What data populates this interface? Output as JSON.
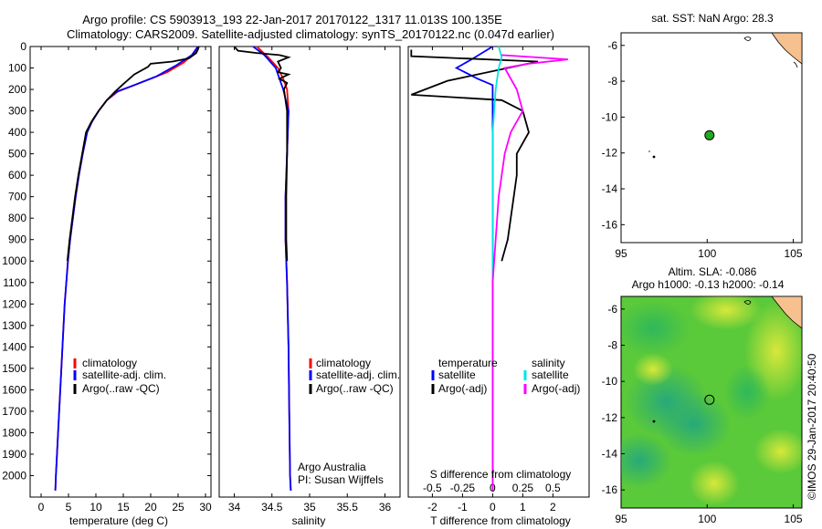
{
  "header": {
    "title_line1": "Argo profile: CS 5903913_193 22-Jan-2017 20170122_1317 11.013S 100.135E",
    "title_line2": "Climatology: CARS2009. Satellite-adjusted climatology: synTS_20170122.nc (0.047d earlier)"
  },
  "colors": {
    "climatology": "#ff0000",
    "satellite": "#0000ff",
    "argo": "#000000",
    "satellite_salinity": "#00e5e5",
    "argo_salinity": "#ff00ff",
    "land": "#f6c08f",
    "argo_marker": "#22aa22"
  },
  "chart_data": [
    {
      "type": "line",
      "name": "temperature-profile",
      "xlabel": "temperature (deg C)",
      "xlim": [
        -2,
        31
      ],
      "ylim": [
        2100,
        0
      ],
      "xticks": [
        0,
        5,
        10,
        15,
        20,
        25,
        30
      ],
      "yticks": [
        0,
        100,
        200,
        300,
        400,
        500,
        600,
        700,
        800,
        900,
        1000,
        1100,
        1200,
        1300,
        1400,
        1500,
        1600,
        1700,
        1800,
        1900,
        2000
      ],
      "legend": [
        "climatology",
        "satellite-adj. clim.",
        "Argo(..raw -QC)"
      ],
      "series": [
        {
          "name": "climatology",
          "color": "#ff0000",
          "points": [
            [
              28.6,
              0
            ],
            [
              28.2,
              25
            ],
            [
              26,
              75
            ],
            [
              23,
              120
            ],
            [
              18,
              170
            ],
            [
              14,
              210
            ],
            [
              12,
              250
            ],
            [
              10.5,
              300
            ],
            [
              9.3,
              350
            ],
            [
              8.4,
              400
            ],
            [
              7.6,
              500
            ],
            [
              6.9,
              600
            ],
            [
              6.3,
              700
            ],
            [
              5.8,
              800
            ],
            [
              5.3,
              900
            ],
            [
              4.9,
              1000
            ],
            [
              4.6,
              1100
            ],
            [
              4.3,
              1200
            ],
            [
              4.1,
              1300
            ],
            [
              3.9,
              1400
            ],
            [
              3.7,
              1500
            ],
            [
              3.5,
              1600
            ],
            [
              3.3,
              1700
            ],
            [
              3.1,
              1800
            ],
            [
              2.9,
              1900
            ],
            [
              2.7,
              2000
            ],
            [
              2.6,
              2070
            ]
          ]
        },
        {
          "name": "satellite-adj. clim.",
          "color": "#0000ff",
          "points": [
            [
              28.6,
              0
            ],
            [
              27.5,
              40
            ],
            [
              24.5,
              90
            ],
            [
              21,
              140
            ],
            [
              17,
              180
            ],
            [
              13.8,
              210
            ],
            [
              12,
              250
            ],
            [
              10.5,
              300
            ],
            [
              9.3,
              350
            ],
            [
              8.4,
              400
            ],
            [
              7.6,
              500
            ],
            [
              6.9,
              600
            ],
            [
              6.3,
              700
            ],
            [
              5.8,
              800
            ],
            [
              5.3,
              900
            ],
            [
              4.9,
              1000
            ],
            [
              4.6,
              1100
            ],
            [
              4.3,
              1200
            ],
            [
              4.1,
              1300
            ],
            [
              3.9,
              1400
            ],
            [
              3.7,
              1500
            ],
            [
              3.5,
              1600
            ],
            [
              3.3,
              1700
            ],
            [
              3.1,
              1800
            ],
            [
              2.9,
              1900
            ],
            [
              2.7,
              2000
            ],
            [
              2.6,
              2070
            ]
          ]
        },
        {
          "name": "Argo(..raw -QC)",
          "color": "#000000",
          "points": [
            [
              28.8,
              0
            ],
            [
              28.6,
              15
            ],
            [
              28.3,
              30
            ],
            [
              27,
              55
            ],
            [
              24,
              70
            ],
            [
              20,
              80
            ],
            [
              19.5,
              95
            ],
            [
              17,
              130
            ],
            [
              15,
              175
            ],
            [
              13.5,
              210
            ],
            [
              12,
              250
            ],
            [
              10.5,
              300
            ],
            [
              9.2,
              350
            ],
            [
              8.2,
              400
            ],
            [
              7.5,
              500
            ],
            [
              6.8,
              600
            ],
            [
              6.2,
              700
            ],
            [
              5.7,
              800
            ],
            [
              5.2,
              900
            ],
            [
              4.8,
              1000
            ]
          ]
        }
      ]
    },
    {
      "type": "line",
      "name": "salinity-profile",
      "xlabel": "salinity",
      "xlim": [
        33.8,
        36.2
      ],
      "ylim": [
        2100,
        0
      ],
      "xticks": [
        34,
        34.5,
        35,
        35.5,
        36
      ],
      "legend": [
        "climatology",
        "satellite-adj. clim.",
        "Argo(..raw -QC)"
      ],
      "annotation": [
        "Argo Australia",
        "PI: Susan Wijffels"
      ],
      "series": [
        {
          "name": "climatology",
          "color": "#ff0000",
          "points": [
            [
              34.3,
              0
            ],
            [
              34.45,
              50
            ],
            [
              34.58,
              100
            ],
            [
              34.65,
              150
            ],
            [
              34.7,
              200
            ],
            [
              34.72,
              300
            ],
            [
              34.7,
              500
            ],
            [
              34.68,
              700
            ],
            [
              34.68,
              900
            ],
            [
              34.7,
              1100
            ],
            [
              34.72,
              1400
            ],
            [
              34.73,
              1700
            ],
            [
              34.74,
              2000
            ],
            [
              34.75,
              2070
            ]
          ]
        },
        {
          "name": "satellite-adj. clim.",
          "color": "#0000ff",
          "points": [
            [
              34.25,
              0
            ],
            [
              34.4,
              40
            ],
            [
              34.55,
              100
            ],
            [
              34.6,
              150
            ],
            [
              34.65,
              200
            ],
            [
              34.72,
              300
            ],
            [
              34.7,
              500
            ],
            [
              34.68,
              700
            ],
            [
              34.68,
              900
            ],
            [
              34.7,
              1100
            ],
            [
              34.72,
              1400
            ],
            [
              34.73,
              1700
            ],
            [
              34.74,
              2000
            ],
            [
              34.75,
              2070
            ]
          ]
        },
        {
          "name": "Argo(..raw -QC)",
          "color": "#000000",
          "points": [
            [
              34.0,
              0
            ],
            [
              34.05,
              20
            ],
            [
              34.3,
              30
            ],
            [
              34.6,
              40
            ],
            [
              34.72,
              50
            ],
            [
              34.58,
              70
            ],
            [
              34.62,
              100
            ],
            [
              34.58,
              120
            ],
            [
              34.72,
              130
            ],
            [
              34.6,
              150
            ],
            [
              34.7,
              170
            ],
            [
              34.66,
              200
            ],
            [
              34.7,
              300
            ],
            [
              34.7,
              500
            ],
            [
              34.69,
              700
            ],
            [
              34.69,
              900
            ],
            [
              34.7,
              1000
            ]
          ]
        }
      ]
    },
    {
      "type": "line",
      "name": "difference-profile",
      "xlabel": "T difference from climatology",
      "x2label": "S difference from climatology",
      "xlim": [
        -2.8,
        3.2
      ],
      "ylim": [
        2100,
        0
      ],
      "xticks": [
        -2,
        -1,
        0,
        1,
        2
      ],
      "x2ticks": [
        "-0.5",
        "-0.25",
        "0",
        "0.25",
        "0.5"
      ],
      "x2tick_positions": [
        -2,
        -1,
        0,
        1,
        2
      ],
      "legend_left": [
        "temperature",
        "satellite",
        "Argo(-adj)"
      ],
      "legend_right": [
        "salinity",
        "satellite",
        "Argo(-adj)"
      ],
      "series": [
        {
          "name": "temperature satellite",
          "color": "#0000ff",
          "points": [
            [
              0,
              0
            ],
            [
              -0.7,
              60
            ],
            [
              -1.2,
              100
            ],
            [
              -0.5,
              150
            ],
            [
              0,
              180
            ],
            [
              0,
              300
            ],
            [
              0,
              600
            ],
            [
              0,
              900
            ],
            [
              0,
              1100
            ],
            [
              0,
              1400
            ],
            [
              0,
              1700
            ],
            [
              0,
              2070
            ]
          ]
        },
        {
          "name": "temperature Argo(-adj)",
          "color": "#000000",
          "points": [
            [
              -2.7,
              15
            ],
            [
              -2.7,
              45
            ],
            [
              1.5,
              70
            ],
            [
              -1.5,
              160
            ],
            [
              -2.7,
              225
            ],
            [
              0.3,
              250
            ],
            [
              1.0,
              300
            ],
            [
              1.2,
              400
            ],
            [
              0.8,
              500
            ],
            [
              0.8,
              600
            ],
            [
              0.7,
              700
            ],
            [
              0.6,
              800
            ],
            [
              0.5,
              900
            ],
            [
              0.3,
              1000
            ]
          ]
        },
        {
          "name": "salinity satellite",
          "color": "#00e5e5",
          "points": [
            [
              0.2,
              0
            ],
            [
              0.3,
              50
            ],
            [
              0.2,
              100
            ],
            [
              0.1,
              200
            ],
            [
              0,
              400
            ],
            [
              0,
              800
            ],
            [
              0,
              1200
            ],
            [
              0,
              1600
            ],
            [
              0,
              2070
            ]
          ]
        },
        {
          "name": "salinity Argo(-adj)",
          "color": "#ff00ff",
          "points": [
            [
              0.3,
              40
            ],
            [
              2.5,
              60
            ],
            [
              1.2,
              80
            ],
            [
              0.4,
              100
            ],
            [
              0.8,
              200
            ],
            [
              1.0,
              300
            ],
            [
              0.6,
              400
            ],
            [
              0.4,
              500
            ],
            [
              0.2,
              700
            ],
            [
              0.1,
              900
            ],
            [
              0,
              1100
            ],
            [
              0,
              1500
            ],
            [
              0,
              1800
            ],
            [
              0,
              2070
            ]
          ]
        }
      ]
    },
    {
      "type": "scatter",
      "name": "sst-map",
      "title": "sat. SST: NaN Argo: 28.3",
      "xlim": [
        95,
        105.5
      ],
      "ylim": [
        -17,
        -5.3
      ],
      "xticks": [
        95,
        100,
        105
      ],
      "yticks": [
        -6,
        -8,
        -10,
        -12,
        -14,
        -16
      ],
      "argo_position": [
        100.135,
        -11.013
      ]
    },
    {
      "type": "heatmap",
      "name": "sla-map",
      "title": "Altim. SLA: -0.086",
      "subtitle": "Argo h1000: -0.13 h2000: -0.14",
      "xlim": [
        95,
        105.5
      ],
      "ylim": [
        -17,
        -5.3
      ],
      "xticks": [
        95,
        100,
        105
      ],
      "yticks": [
        -6,
        -8,
        -10,
        -12,
        -14,
        -16
      ],
      "argo_position": [
        100.135,
        -11.013
      ]
    }
  ],
  "footer": {
    "credit": "©IMOS 29-Jan-2017 20:40:50"
  }
}
